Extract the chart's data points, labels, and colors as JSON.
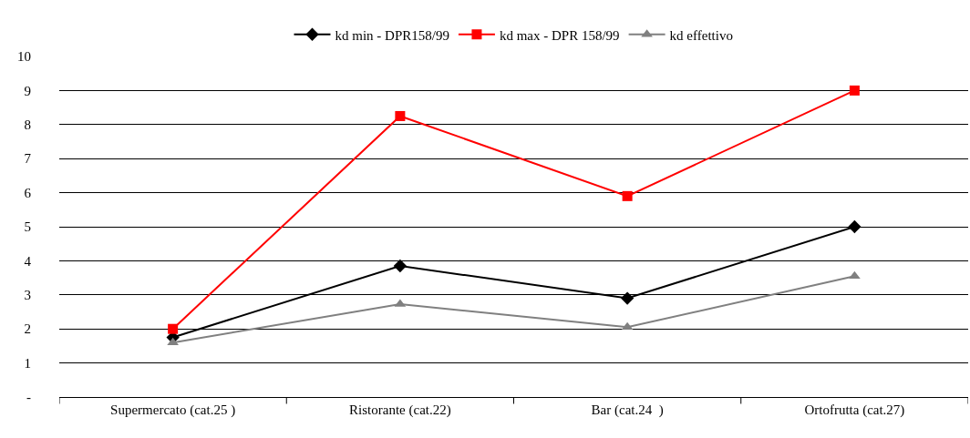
{
  "chart_data": {
    "type": "line",
    "categories": [
      "Supermercato (cat.25 )",
      "Ristorante (cat.22)",
      "Bar (cat.24  )",
      "Ortofrutta (cat.27)"
    ],
    "series": [
      {
        "name": "kd min - DPR158/99",
        "color": "#000000",
        "marker": "diamond",
        "values": [
          1.75,
          3.85,
          2.9,
          5.0
        ]
      },
      {
        "name": "kd max - DPR 158/99",
        "color": "#ff0000",
        "marker": "square",
        "values": [
          2.0,
          8.25,
          5.9,
          9.0
        ]
      },
      {
        "name": "kd effettivo",
        "color": "#808080",
        "marker": "triangle",
        "values": [
          1.6,
          2.73,
          2.05,
          3.55
        ]
      }
    ],
    "ylim": [
      0,
      10
    ],
    "yticks": [
      {
        "value": 0,
        "label": "-"
      },
      1,
      2,
      3,
      4,
      5,
      6,
      7,
      8,
      9,
      10
    ],
    "grid": "y",
    "legend": "top",
    "line_style": "solid"
  }
}
